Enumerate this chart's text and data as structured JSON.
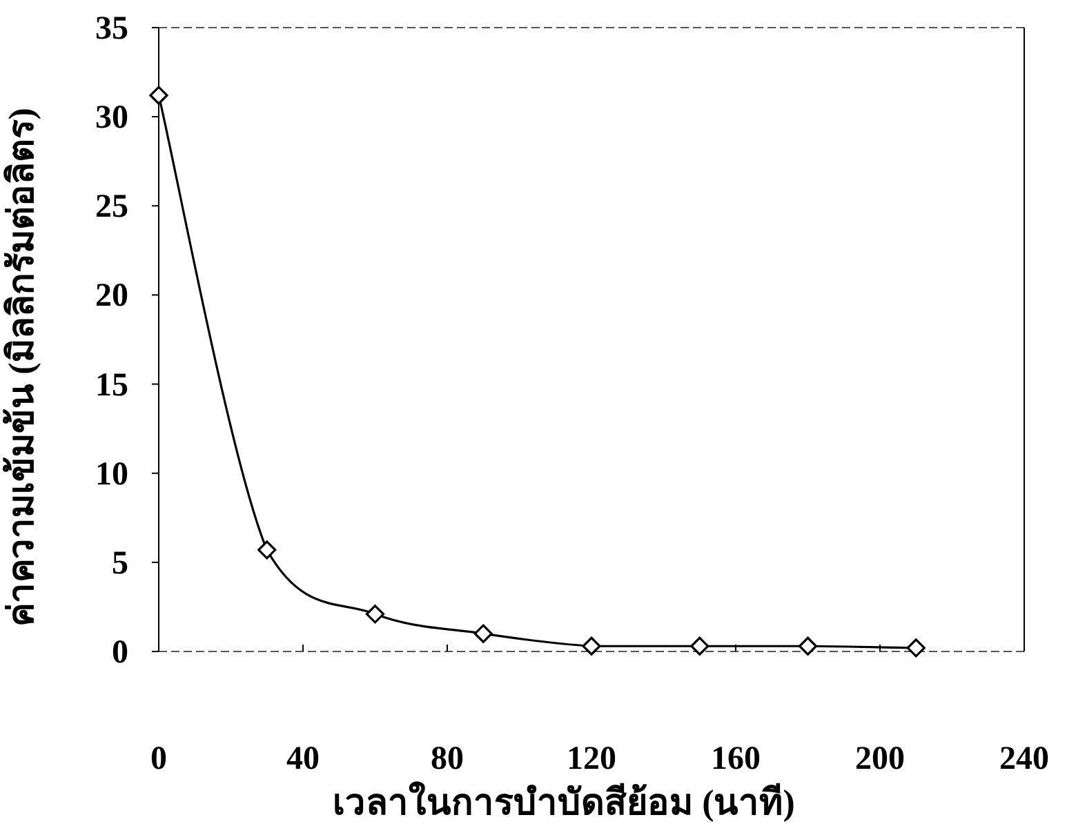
{
  "chart_data": {
    "type": "line",
    "xlabel": "เวลาในการบำบัดสีย้อม (นาที)",
    "ylabel": "ค่าความเข้มข้น (มิลลิกรัมต่อลิตร)",
    "x": [
      0,
      30,
      60,
      90,
      120,
      150,
      180,
      210
    ],
    "series": [
      {
        "color": "#000000",
        "values": [
          31.2,
          5.7,
          2.1,
          1.0,
          0.3,
          0.3,
          0.3,
          0.2
        ]
      }
    ],
    "xlim": [
      0,
      240
    ],
    "xticks": [
      0,
      40,
      80,
      120,
      160,
      200,
      240
    ],
    "ylim": [
      0,
      35
    ],
    "yticks": [
      0,
      5,
      10,
      15,
      20,
      25,
      30,
      35
    ],
    "marker": "diamond",
    "line_style": "solid",
    "grid": false
  }
}
